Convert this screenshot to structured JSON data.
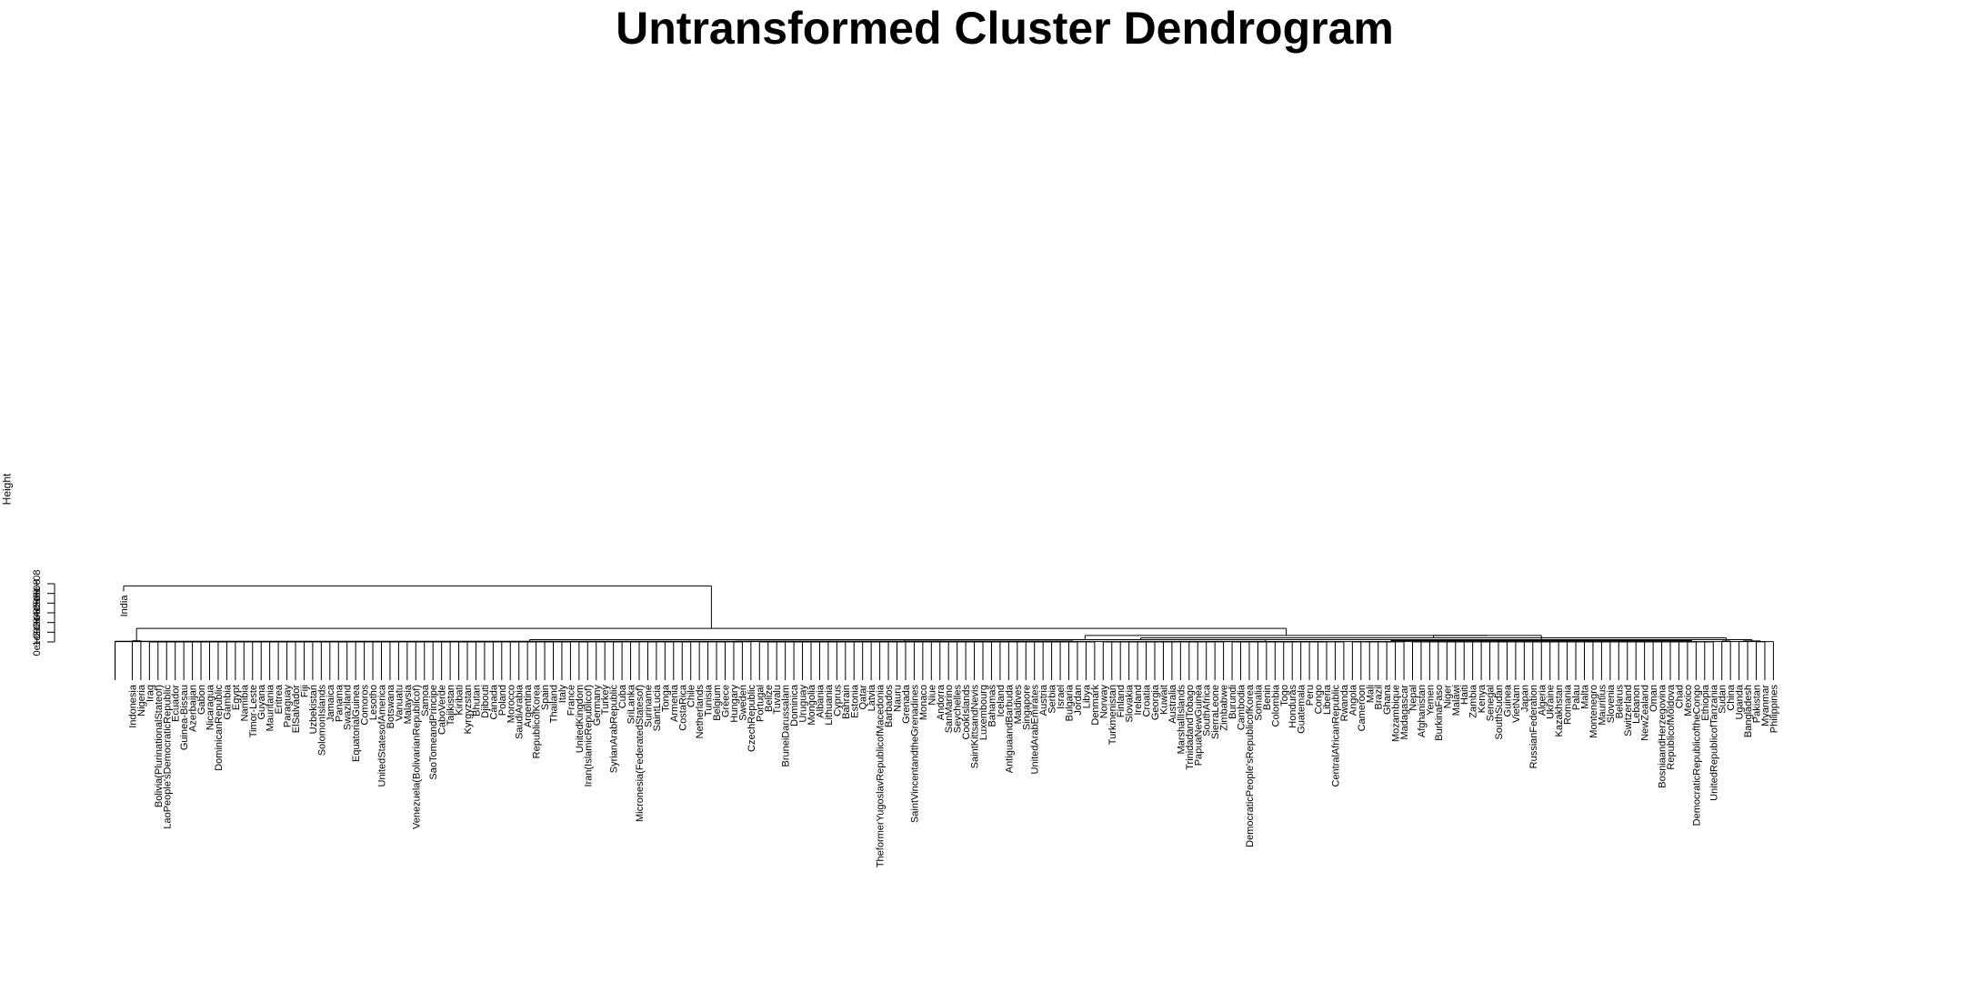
{
  "chart_data": {
    "type": "dendrogram",
    "title": "Untransformed Cluster Dendrogram",
    "ylabel": "Height",
    "ylim": [
      0,
      600000000
    ],
    "yticks": [
      "0e+00",
      "1e+08",
      "2e+08",
      "3e+08",
      "4e+08",
      "5e+08",
      "6e+08"
    ],
    "leaves": [
      "India",
      "Indonesia",
      "Nigeria",
      "Iraq",
      "Bolivia(PlurinationalStateof)",
      "LaoPeople'sDemocraticRepublic",
      "Ecuador",
      "Guinea-Bissau",
      "Azerbaijan",
      "Gabon",
      "Nicaragua",
      "DominicanRepublic",
      "Gambia",
      "Egypt",
      "Namibia",
      "Timor-Leste",
      "Guyana",
      "Mauritania",
      "Eritrea",
      "Paraguay",
      "ElSalvador",
      "Fiji",
      "Uzbekistan",
      "SolomonIslands",
      "Jamaica",
      "Panama",
      "Swaziland",
      "EquatorialGuinea",
      "Comoros",
      "Lesotho",
      "UnitedStatesofAmerica",
      "Botswana",
      "Vanuatu",
      "Malaysia",
      "Venezuela(BolivarianRepublicof)",
      "Samoa",
      "SaoTomeandPrincipe",
      "CaboVerde",
      "Tajikistan",
      "Kiribati",
      "Kyrgyzstan",
      "Bhutan",
      "Djibouti",
      "Canada",
      "Poland",
      "Morocco",
      "SaudiArabia",
      "Argentina",
      "RepublicofKorea",
      "Spain",
      "Thailand",
      "Italy",
      "France",
      "UnitedKingdom",
      "Iran(IslamicRepublicof)",
      "Germany",
      "Turkey",
      "SyrianArabRepublic",
      "Cuba",
      "SriLanka",
      "Micronesia(FederatedStatesof)",
      "Suriname",
      "SaintLucia",
      "Tonga",
      "Armenia",
      "CostaRica",
      "Chile",
      "Netherlands",
      "Tunisia",
      "Belgium",
      "Greece",
      "Hungary",
      "Sweden",
      "CzechRepublic",
      "Portugal",
      "Belize",
      "Tuvalu",
      "BruneiDarussalam",
      "Dominica",
      "Uruguay",
      "Mongolia",
      "Albania",
      "Lithuania",
      "Cyprus",
      "Bahrain",
      "Estonia",
      "Qatar",
      "Latvia",
      "TheformerYugoslavRepublicofMacedonia",
      "Barbados",
      "Nauru",
      "Grenada",
      "SaintVincentandtheGrenadines",
      "Monaco",
      "Niue",
      "Andorra",
      "SanMarino",
      "Seychelles",
      "CookIslands",
      "SaintKittsandNevis",
      "Luxembourg",
      "Bahamas",
      "Iceland",
      "AntiguaandBarbuda",
      "Maldives",
      "Singapore",
      "UnitedArabEmirates",
      "Austria",
      "Serbia",
      "Israel",
      "Bulgaria",
      "Jordan",
      "Libya",
      "Denmark",
      "Norway",
      "Turkmenistan",
      "Finland",
      "Slovakia",
      "Ireland",
      "Croatia",
      "Georgia",
      "Kuwait",
      "Australia",
      "MarshallIslands",
      "TrinidadandTobago",
      "PapuaNewGuinea",
      "SouthAfrica",
      "SierraLeone",
      "Zimbabwe",
      "Burundi",
      "Cambodia",
      "DemocraticPeople'sRepublicofKorea",
      "Somalia",
      "Benin",
      "Colombia",
      "Togo",
      "Honduras",
      "Guatemala",
      "Peru",
      "Congo",
      "Liberia",
      "CentralAfricanRepublic",
      "Rwanda",
      "Angola",
      "Cameroon",
      "Mali",
      "Brazil",
      "Ghana",
      "Mozambique",
      "Madagascar",
      "Nepal",
      "Afghanistan",
      "Yemen",
      "BurkinaFaso",
      "Niger",
      "Malawi",
      "Haiti",
      "Zambia",
      "Kenya",
      "Senegal",
      "SouthSudan",
      "Guinea",
      "VietNam",
      "Japan",
      "RussianFederation",
      "Algeria",
      "Ukraine",
      "Kazakhstan",
      "Romania",
      "Palau",
      "Malta",
      "Montenegro",
      "Mauritius",
      "Slovenia",
      "Belarus",
      "Switzerland",
      "Lebanon",
      "NewZealand",
      "Oman",
      "BosniaandHerzegovina",
      "RepublicofMoldova",
      "Chad",
      "Mexico",
      "DemocraticRepublicoftheCongo",
      "Ethiopia",
      "UnitedRepublicofTanzania",
      "Sudan",
      "China",
      "Uganda",
      "Bangladesh",
      "Pakistan",
      "Myanmar",
      "Philippines"
    ],
    "india_leaf_height": 520000000,
    "merges": [
      {
        "between": [
          "India",
          "all other countries"
        ],
        "height": 578000000
      },
      {
        "between": [
          "Indonesia/Nigeria",
          "remaining countries"
        ],
        "height": 140000000
      },
      {
        "between": [
          "Iraq ... Angola group",
          "Cameroon ... Philippines group"
        ],
        "height": 67000000
      },
      {
        "between": [
          "Iraq ... Libya",
          "Denmark ... Angola"
        ],
        "height": 22000000
      },
      {
        "between": [
          "Iraq ... Czech Republic",
          "Portugal ... Libya"
        ],
        "height": 8000000
      },
      {
        "between": [
          "Cameroon ... Mexico",
          "DR Congo ... Philippines"
        ],
        "height": 67000000
      },
      {
        "between": [
          "DR Congo/Ethiopia",
          "Tanzania ... Philippines"
        ],
        "height": 42000000
      },
      {
        "between": [
          "Tanzania ... Uganda",
          "Bangladesh ... Philippines"
        ],
        "height": 24000000
      },
      {
        "between": [
          "Cameroon ... Nepal",
          "Afghanistan ... Mexico"
        ],
        "height": 14000000
      },
      {
        "between": [
          "Indonesia",
          "Nigeria"
        ],
        "height": 12000000
      },
      {
        "between": [
          "DR Congo",
          "Ethiopia"
        ],
        "height": 9000000
      }
    ]
  }
}
